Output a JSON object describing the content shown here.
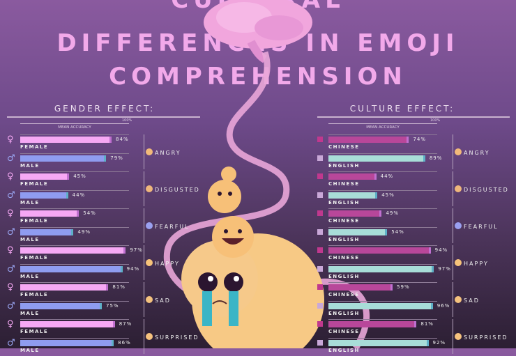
{
  "title": {
    "line1": "CULTURAL",
    "line2": "DIFFERENCES IN EMOJI",
    "line3": "COMPREHENSION"
  },
  "colors": {
    "background_top": "#8a5a9f",
    "background_bottom": "#2c1f33",
    "title": "#f2a9ea",
    "female": "#f6a8f4",
    "male": "#8f9cf0",
    "chinese": "#b8479a",
    "english": "#a8ddd8"
  },
  "chart_data": [
    {
      "type": "bar",
      "title": "GENDER EFFECT:",
      "ylabel": "MEAN ACCURACY",
      "scale_label": "100%",
      "xlim": [
        0,
        100
      ],
      "orientation": "horizontal",
      "categories": [
        "ANGRY",
        "DISGUSTED",
        "FEARFUL",
        "HAPPY",
        "SAD",
        "SURPRISED"
      ],
      "series": [
        {
          "name": "FEMALE",
          "icon": "female-symbol-icon",
          "values": [
            84,
            45,
            54,
            97,
            81,
            87
          ]
        },
        {
          "name": "MALE",
          "icon": "male-symbol-icon",
          "values": [
            79,
            44,
            49,
            94,
            75,
            86
          ]
        }
      ]
    },
    {
      "type": "bar",
      "title": "CULTURE EFFECT:",
      "ylabel": "MEAN ACCURACY",
      "scale_label": "100%",
      "xlim": [
        0,
        100
      ],
      "orientation": "horizontal",
      "categories": [
        "ANGRY",
        "DISGUSTED",
        "FEARFUL",
        "HAPPY",
        "SAD",
        "SURPRISED"
      ],
      "series": [
        {
          "name": "CHINESE",
          "icon": "china-flag-icon",
          "values": [
            74,
            44,
            49,
            94,
            59,
            81
          ]
        },
        {
          "name": "ENGLISH",
          "icon": "uk-flag-icon",
          "values": [
            89,
            45,
            54,
            97,
            96,
            92
          ]
        }
      ]
    }
  ]
}
